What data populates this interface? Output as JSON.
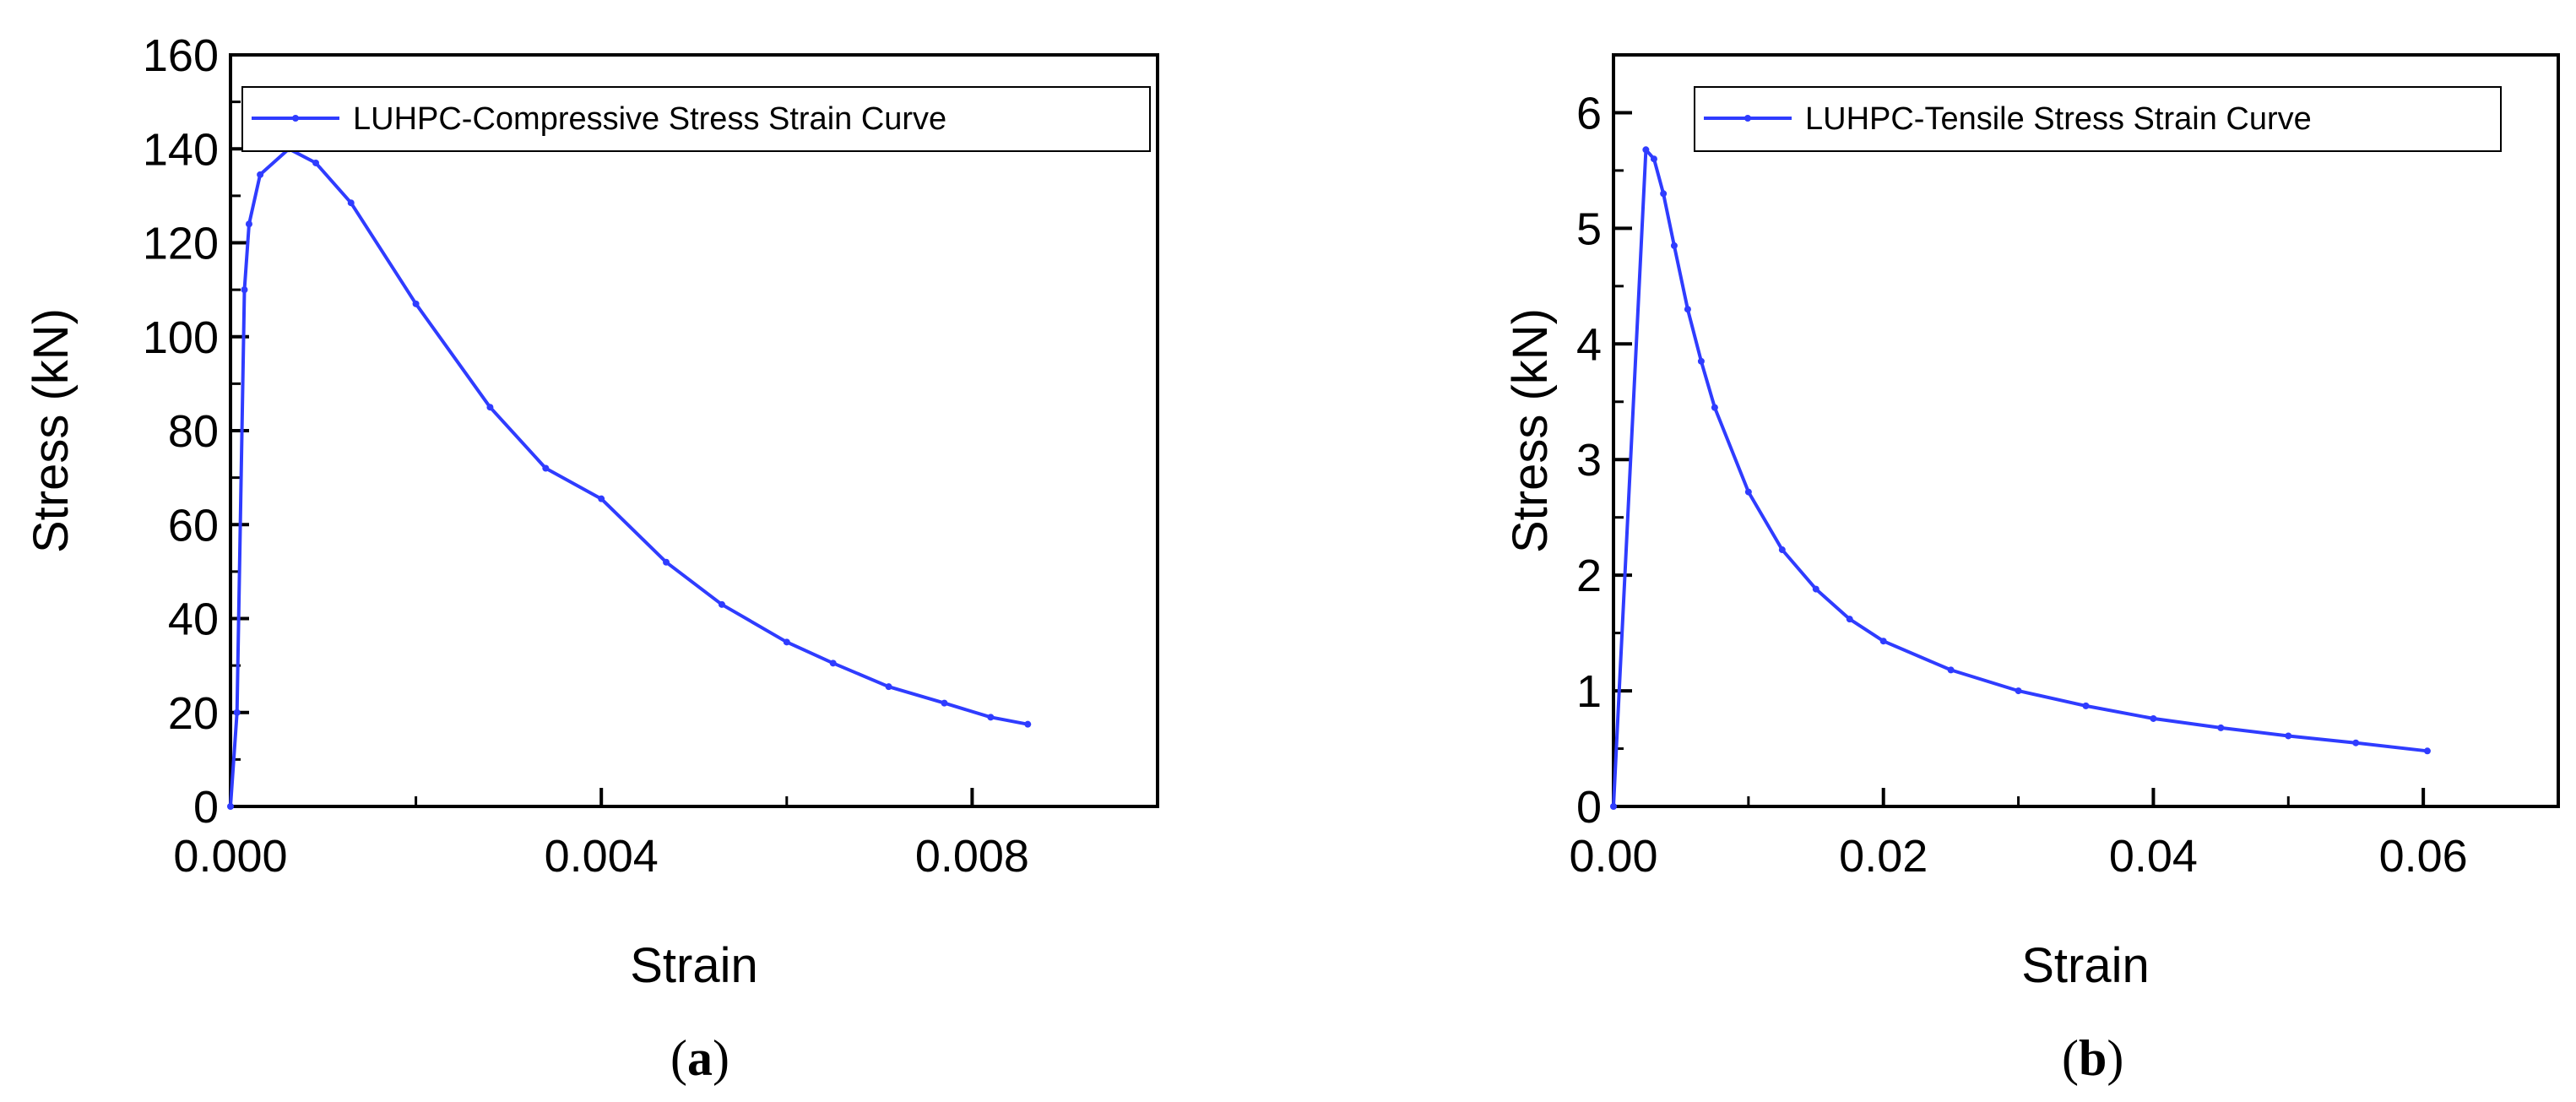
{
  "chart_data": [
    {
      "type": "line",
      "panel_label": "a",
      "title": "",
      "xlabel": "Strain",
      "ylabel": "Stress (kN)",
      "xlim": [
        0,
        0.01
      ],
      "ylim": [
        0,
        160
      ],
      "x_major_ticks": [
        0,
        0.004,
        0.008
      ],
      "x_tick_labels": [
        "0.000",
        "0.004",
        "0.008"
      ],
      "x_minor_ticks": [
        0.002,
        0.006,
        0.01
      ],
      "y_major_ticks": [
        0,
        20,
        40,
        60,
        80,
        100,
        120,
        140,
        160
      ],
      "y_tick_labels": [
        "0",
        "20",
        "40",
        "60",
        "80",
        "100",
        "120",
        "140",
        "160"
      ],
      "grid": false,
      "legend_position": "top-right",
      "color": "#2f3cff",
      "series": [
        {
          "name": "LUHPC-Compressive Stress Strain Curve",
          "x": [
            0,
            7e-05,
            0.00015,
            0.0002,
            0.00032,
            0.00063,
            0.00092,
            0.0013,
            0.002,
            0.0028,
            0.0034,
            0.004,
            0.0047,
            0.0053,
            0.006,
            0.0065,
            0.0071,
            0.0077,
            0.0082,
            0.0086
          ],
          "y": [
            0,
            20,
            110,
            124,
            134.5,
            140,
            137,
            128.5,
            107,
            85,
            72,
            65.5,
            52,
            43,
            35,
            30.5,
            25.5,
            22,
            19,
            17.5
          ]
        }
      ]
    },
    {
      "type": "line",
      "panel_label": "b",
      "title": "",
      "xlabel": "Strain",
      "ylabel": "Stress (kN)",
      "xlim": [
        0,
        0.07
      ],
      "ylim": [
        0,
        6.5
      ],
      "x_major_ticks": [
        0,
        0.02,
        0.04,
        0.06
      ],
      "x_tick_labels": [
        "0.00",
        "0.02",
        "0.04",
        "0.06"
      ],
      "x_minor_ticks": [
        0.01,
        0.03,
        0.05,
        0.07
      ],
      "y_major_ticks": [
        0,
        1,
        2,
        3,
        4,
        5,
        6
      ],
      "y_tick_labels": [
        "0",
        "1",
        "2",
        "3",
        "4",
        "5",
        "6"
      ],
      "grid": false,
      "legend_position": "top-right",
      "color": "#2f3cff",
      "series": [
        {
          "name": "LUHPC-Tensile Stress Strain Curve",
          "x": [
            0,
            0.0024,
            0.003,
            0.0037,
            0.0045,
            0.0055,
            0.0065,
            0.0075,
            0.01,
            0.0125,
            0.015,
            0.0175,
            0.02,
            0.025,
            0.03,
            0.035,
            0.04,
            0.045,
            0.05,
            0.055,
            0.0603
          ],
          "y": [
            0,
            5.68,
            5.6,
            5.3,
            4.85,
            4.3,
            3.85,
            3.45,
            2.72,
            2.22,
            1.88,
            1.62,
            1.43,
            1.18,
            1.0,
            0.87,
            0.76,
            0.68,
            0.61,
            0.55,
            0.48
          ]
        }
      ]
    }
  ]
}
